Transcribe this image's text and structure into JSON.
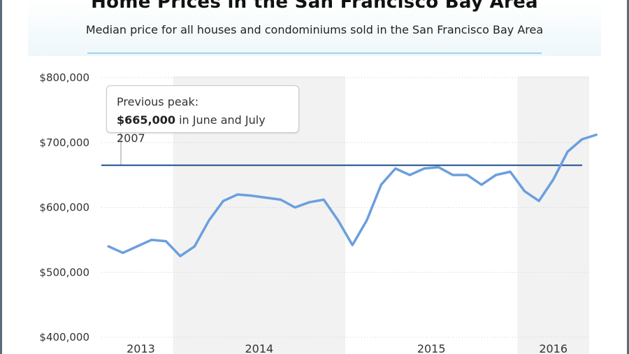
{
  "chart_data": {
    "type": "line",
    "title": "Home Prices in the San Francisco Bay Area",
    "subtitle": "Median price for all houses and condominiums sold in the San Francisco Bay Area",
    "ylabel": "",
    "xlabel": "",
    "ylim": [
      400000,
      800000
    ],
    "yticks": [
      400000,
      500000,
      600000,
      700000,
      800000
    ],
    "ytick_labels": [
      "$400,000",
      "$500,000",
      "$600,000",
      "$700,000",
      "$800,000"
    ],
    "xtick_labels": [
      "2013",
      "2014",
      "2015",
      "2016"
    ],
    "grid": true,
    "year_bands": [
      {
        "label": "2013",
        "start": 0,
        "end": 4.5,
        "shaded": false
      },
      {
        "label": "2014",
        "start": 4.5,
        "end": 16.5,
        "shaded": true
      },
      {
        "label": "2015",
        "start": 16.5,
        "end": 28.5,
        "shaded": false
      },
      {
        "label": "2016",
        "start": 28.5,
        "end": 33.5,
        "shaded": true
      }
    ],
    "x_range": [
      -0.5,
      33.5
    ],
    "series": [
      {
        "values": [
          540000,
          530000,
          540000,
          550000,
          548000,
          525000,
          540000,
          580000,
          610000,
          620000,
          618000,
          615000,
          612000,
          600000,
          608000,
          612000,
          580000,
          542000,
          580000,
          635000,
          660000,
          650000,
          660000,
          662000,
          650000,
          650000,
          635000,
          650000,
          655000,
          625000,
          610000,
          643000,
          686000,
          705000,
          712000
        ],
        "color": "#6b9fde"
      }
    ],
    "reference_line": {
      "value": 665000,
      "color": "#1f4e8c"
    },
    "annotation": {
      "line1": "Previous peak:",
      "bold": "$665,000",
      "rest": " in June and July 2007"
    }
  },
  "colors": {
    "band": "#f2f2f2",
    "grid": "#cccccc",
    "line": "#6b9fde",
    "ref": "#1f4e8c",
    "rule": "#9fd3e3"
  }
}
